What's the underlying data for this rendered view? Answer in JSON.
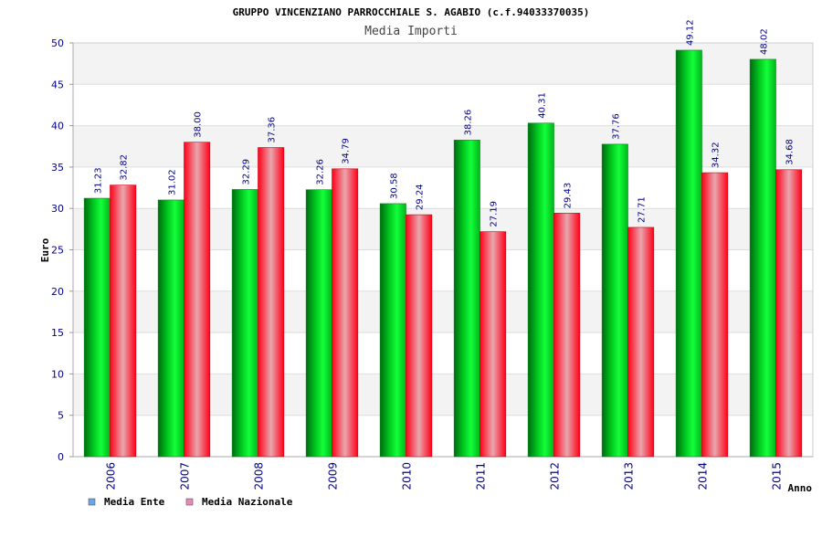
{
  "chart_data": {
    "type": "bar",
    "title": "GRUPPO VINCENZIANO PARROCCHIALE S. AGABIO (c.f.94033370035)",
    "subtitle": "Media Importi",
    "xlabel": "Anno",
    "ylabel": "Euro",
    "ylim": [
      0,
      50
    ],
    "yticks": [
      "0",
      "5",
      "10",
      "15",
      "20",
      "25",
      "30",
      "35",
      "40",
      "45",
      "50"
    ],
    "grid": true,
    "legend_position": "bottom-left",
    "categories": [
      "2006",
      "2007",
      "2008",
      "2009",
      "2010",
      "2011",
      "2012",
      "2013",
      "2014",
      "2015"
    ],
    "series": [
      {
        "name": "Media Ente",
        "values": [
          31.23,
          31.02,
          32.29,
          32.26,
          30.58,
          38.26,
          40.31,
          37.76,
          49.12,
          48.02
        ],
        "labels": [
          "31.23",
          "31.02",
          "32.29",
          "32.26",
          "30.58",
          "38.26",
          "40.31",
          "37.76",
          "49.12",
          "48.02"
        ],
        "color": "#00cc22",
        "legend_color": "#6aa6e6"
      },
      {
        "name": "Media Nazionale",
        "values": [
          32.82,
          38.0,
          37.36,
          34.79,
          29.24,
          27.19,
          29.43,
          27.71,
          34.32,
          34.68
        ],
        "labels": [
          "32.82",
          "38.00",
          "37.36",
          "34.79",
          "29.24",
          "27.19",
          "29.43",
          "27.71",
          "34.32",
          "34.68"
        ],
        "color": "#ff0022",
        "legend_color": "#e68ab8"
      }
    ]
  }
}
